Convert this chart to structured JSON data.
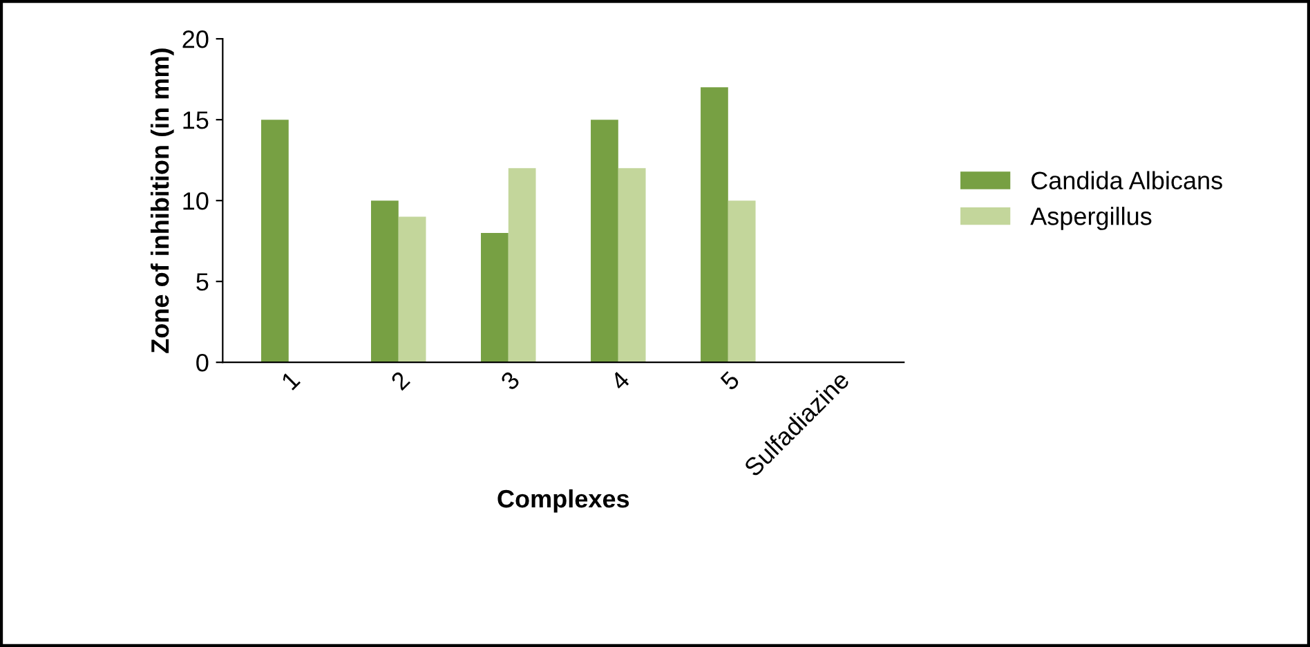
{
  "chart_data": {
    "type": "bar",
    "xlabel": "Complexes",
    "ylabel": "Zone of inhibition (in mm)",
    "categories": [
      "1",
      "2",
      "3",
      "4",
      "5",
      "Sulfadiazine"
    ],
    "series": [
      {
        "name": "Candida Albicans",
        "color": "#77a043",
        "values": [
          15,
          10,
          8,
          15,
          17,
          0
        ]
      },
      {
        "name": "Aspergillus",
        "color": "#c3d69b",
        "values": [
          0,
          9,
          12,
          12,
          10,
          0
        ]
      }
    ],
    "ylim": [
      0,
      20
    ],
    "yticks": [
      0,
      5,
      10,
      15,
      20
    ],
    "grid": false,
    "legend": "right"
  }
}
